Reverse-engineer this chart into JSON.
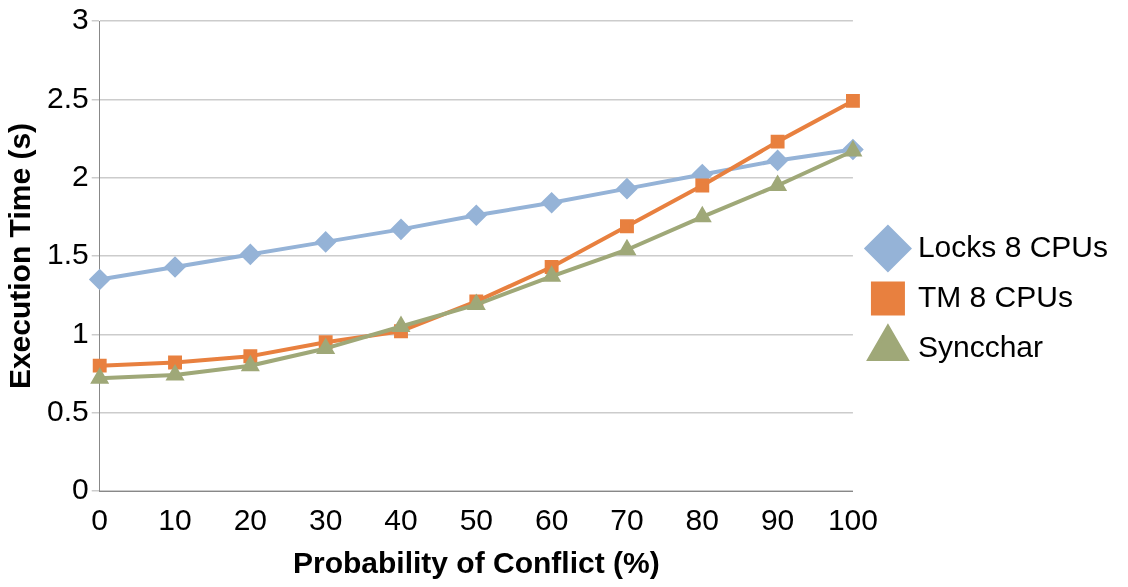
{
  "chart_data": {
    "type": "line",
    "xlabel": "Probability of Conflict (%)",
    "ylabel": "Execution Time (s)",
    "categories": [
      "0",
      "10",
      "20",
      "30",
      "40",
      "50",
      "60",
      "70",
      "80",
      "90",
      "100"
    ],
    "series": [
      {
        "name": "Locks 8 CPUs",
        "color": "#95b3d7",
        "marker": "diamond",
        "values": [
          1.35,
          1.43,
          1.51,
          1.59,
          1.67,
          1.76,
          1.84,
          1.93,
          2.02,
          2.11,
          2.18
        ]
      },
      {
        "name": "TM 8 CPUs",
        "color": "#e8803f",
        "marker": "square",
        "values": [
          0.8,
          0.82,
          0.86,
          0.95,
          1.02,
          1.21,
          1.43,
          1.69,
          1.95,
          2.23,
          2.49
        ]
      },
      {
        "name": "Syncchar",
        "color": "#9fa878",
        "marker": "triangle",
        "values": [
          0.72,
          0.74,
          0.8,
          0.91,
          1.05,
          1.19,
          1.37,
          1.54,
          1.75,
          1.95,
          2.17
        ]
      }
    ],
    "ylim": [
      0,
      3
    ],
    "yticks": [
      0,
      0.5,
      1,
      1.5,
      2,
      2.5,
      3
    ],
    "grid": "y",
    "legend": "right"
  }
}
